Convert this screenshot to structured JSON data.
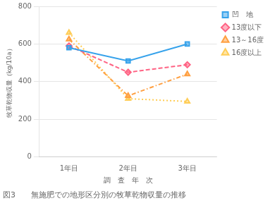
{
  "chart_data": {
    "type": "line",
    "title": "図3　　無施肥での地形区分別の牧草乾物収量の推移",
    "xlabel": "調　査　年　次",
    "ylabel": "牧草乾物収量（kg/10a）",
    "categories": [
      "1年目",
      "2年目",
      "3年目"
    ],
    "series": [
      {
        "name": "凹　地",
        "values": [
          580,
          510,
          600
        ],
        "marker": "square",
        "line_style": "solid"
      },
      {
        "name": "13度以下",
        "values": [
          590,
          450,
          490
        ],
        "marker": "diamond",
        "line_style": "dashed"
      },
      {
        "name": "13～16度",
        "values": [
          625,
          325,
          440
        ],
        "marker": "triangle",
        "line_style": "dashdot"
      },
      {
        "name": "16度以上",
        "values": [
          660,
          310,
          295
        ],
        "marker": "triangle",
        "line_style": "dotted"
      }
    ],
    "ylim": [
      0,
      800
    ],
    "yticks": [
      0,
      200,
      400,
      600,
      800
    ],
    "grid": "y",
    "legend": "right"
  }
}
